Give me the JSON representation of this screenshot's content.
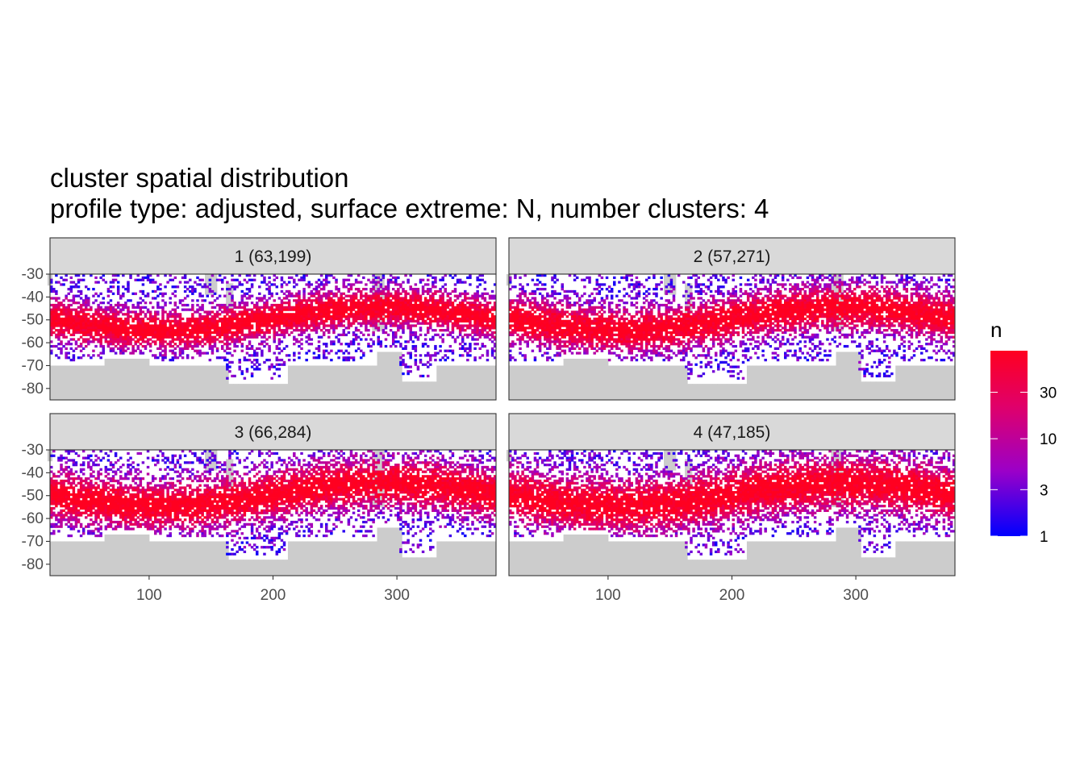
{
  "title": "cluster spatial distribution",
  "subtitle": "profile type: adjusted, surface extreme: N, number clusters: 4",
  "chart_data": {
    "type": "heatmap",
    "facets": [
      {
        "label": "1 (63,199)",
        "cluster": 1,
        "n_profiles": 63199
      },
      {
        "label": "2 (57,271)",
        "cluster": 2,
        "n_profiles": 57271
      },
      {
        "label": "3 (66,284)",
        "cluster": 3,
        "n_profiles": 66284
      },
      {
        "label": "4 (47,185)",
        "cluster": 4,
        "n_profiles": 47185
      }
    ],
    "x_ticks": [
      "100",
      "200",
      "300"
    ],
    "y_ticks": [
      "-30",
      "-40",
      "-50",
      "-60",
      "-70",
      "-80"
    ],
    "x_tick_values": [
      100,
      200,
      300
    ],
    "y_tick_values": [
      -30,
      -40,
      -50,
      -60,
      -70,
      -80
    ],
    "xlim": [
      20,
      380
    ],
    "ylim": [
      -85,
      -30
    ],
    "legend": {
      "title": "n",
      "ticks": [
        "30",
        "10",
        "3",
        "1"
      ],
      "tick_values": [
        30,
        10,
        3,
        1
      ],
      "scale": "log10",
      "range": [
        1,
        80
      ],
      "colors": [
        "#0000ff",
        "#ff0000"
      ],
      "placement": "right"
    },
    "land_color": "#cccccc",
    "panel_background": "#ffffff",
    "strip_fill": "#d9d9d9"
  }
}
